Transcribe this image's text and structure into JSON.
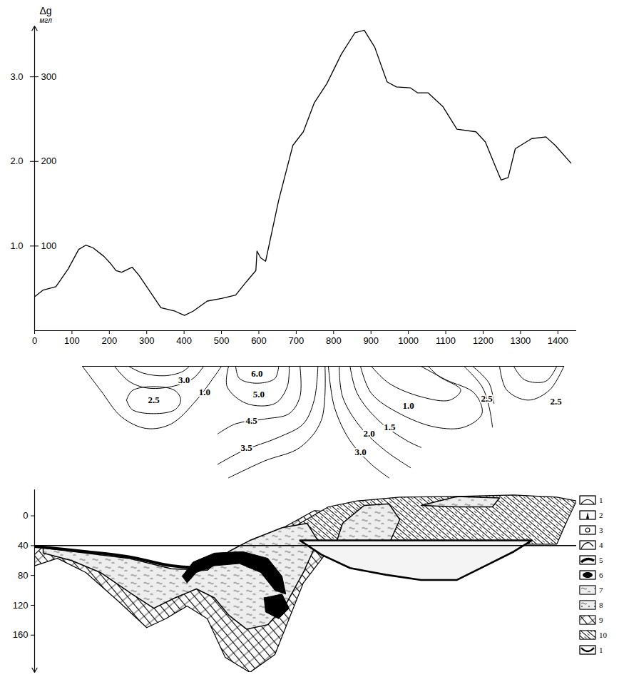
{
  "chart_data": [
    {
      "type": "line",
      "y_label": "Δg",
      "y_unit": "мгл",
      "color": "#000000",
      "grid": false,
      "x": [
        0,
        23,
        57,
        90,
        118,
        137,
        156,
        185,
        204,
        218,
        233,
        261,
        280,
        309,
        338,
        376,
        401,
        424,
        462,
        500,
        538,
        567,
        592,
        595,
        605,
        618,
        653,
        691,
        719,
        748,
        782,
        821,
        857,
        882,
        910,
        943,
        968,
        1005,
        1025,
        1053,
        1092,
        1130,
        1181,
        1206,
        1231,
        1248,
        1267,
        1286,
        1330,
        1368,
        1393,
        1435
      ],
      "values": [
        40,
        48,
        52,
        73,
        96,
        101,
        98,
        88,
        79,
        71,
        69,
        75,
        65,
        46,
        27,
        23,
        18,
        23,
        35,
        38,
        42,
        58,
        71,
        94,
        86,
        82,
        154,
        219,
        235,
        269,
        292,
        327,
        352,
        355,
        335,
        294,
        288,
        287,
        281,
        281,
        265,
        238,
        235,
        223,
        196,
        178,
        181,
        215,
        227,
        229,
        219,
        198
      ],
      "xlim": [
        0,
        1450
      ],
      "xticks": [
        0,
        100,
        200,
        300,
        400,
        500,
        600,
        700,
        800,
        900,
        1000,
        1100,
        1200,
        1300,
        1400
      ],
      "ylim": [
        0,
        360
      ],
      "yticks": [
        100,
        200,
        300
      ],
      "y2lim": [
        0,
        3.6
      ],
      "y2ticks": [
        {
          "value": 1,
          "label": "1.0"
        },
        {
          "value": 2,
          "label": "2.0"
        },
        {
          "value": 3,
          "label": "3.0"
        }
      ]
    },
    {
      "type": "contour",
      "xlim": [
        0,
        1450
      ],
      "ylim": [
        0,
        172
      ],
      "tick_labels": false,
      "contours": [
        {
          "x": [
            128,
            1416
          ],
          "depth": [
            0,
            0
          ]
        },
        {
          "x": [
            128,
            176,
            233,
            300,
            366,
            433,
            481,
            500
          ],
          "depth": [
            0,
            35,
            75,
            92,
            85,
            50,
            15,
            0
          ],
          "label": "1.0",
          "label_x": 455,
          "label_depth": 38
        },
        {
          "x": [
            246,
            261,
            319,
            376,
            391,
            376,
            319,
            261,
            246
          ],
          "depth": [
            50,
            36,
            30,
            36,
            50,
            64,
            70,
            64,
            50
          ],
          "label": "2.5",
          "label_x": 319,
          "label_depth": 50
        },
        {
          "x": [
            214,
            252,
            300,
            366,
            424,
            452
          ],
          "depth": [
            0,
            22,
            32,
            30,
            18,
            0
          ],
          "label": "3.0",
          "label_x": 400,
          "label_depth": 20
        },
        {
          "x": [
            252,
            290,
            347,
            395,
            414
          ],
          "depth": [
            0,
            10,
            14,
            8,
            0
          ]
        },
        {
          "x": [
            538,
            548,
            595,
            643,
            653
          ],
          "depth": [
            0,
            18,
            25,
            18,
            0
          ],
          "label": "6.0",
          "label_x": 595,
          "label_depth": 11
        },
        {
          "x": [
            519,
            515,
            567,
            643,
            676,
            681
          ],
          "depth": [
            0,
            30,
            55,
            55,
            30,
            0
          ],
          "label": "5.0",
          "label_x": 600,
          "label_depth": 42
        },
        {
          "x": [
            490,
            538,
            615,
            681,
            710,
            710
          ],
          "depth": [
            100,
            85,
            78,
            70,
            45,
            0
          ],
          "label": "4.5",
          "label_x": 580,
          "label_depth": 81
        },
        {
          "x": [
            490,
            557,
            653,
            719,
            748,
            758
          ],
          "depth": [
            145,
            125,
            105,
            85,
            50,
            0
          ],
          "label": "3.5",
          "label_x": 567,
          "label_depth": 121
        },
        {
          "x": [
            519,
            615,
            710,
            767,
            777
          ],
          "depth": [
            165,
            140,
            120,
            80,
            0
          ]
        },
        {
          "x": [
            786,
            802,
            844,
            901,
            948
          ],
          "depth": [
            0,
            60,
            110,
            145,
            165
          ],
          "label": "3.0",
          "label_x": 872,
          "label_depth": 127
        },
        {
          "x": [
            815,
            824,
            872,
            939,
            1006
          ],
          "depth": [
            0,
            45,
            90,
            125,
            150
          ],
          "label": "2.0",
          "label_x": 895,
          "label_depth": 100
        },
        {
          "x": [
            844,
            863,
            920,
            996,
            1034
          ],
          "depth": [
            0,
            40,
            80,
            110,
            120
          ],
          "label": "1.5",
          "label_x": 950,
          "label_depth": 90
        },
        {
          "x": [
            872,
            901,
            977,
            1073,
            1149,
            1197,
            1177,
            1101,
            1034
          ],
          "depth": [
            0,
            40,
            70,
            90,
            90,
            70,
            40,
            20,
            0
          ]
        },
        {
          "x": [
            901,
            948,
            1034,
            1111,
            1140,
            1082,
            1053
          ],
          "depth": [
            0,
            25,
            45,
            50,
            35,
            15,
            0
          ],
          "label": "1.0",
          "label_x": 1000,
          "label_depth": 58
        },
        {
          "x": [
            1149,
            1197,
            1216,
            1225
          ],
          "depth": [
            0,
            30,
            60,
            90
          ],
          "label": "2.5",
          "label_x": 1210,
          "label_depth": 48
        },
        {
          "x": [
            1172,
            1216,
            1229
          ],
          "depth": [
            0,
            25,
            55
          ]
        },
        {
          "x": [
            1244,
            1263,
            1321,
            1378,
            1416
          ],
          "depth": [
            0,
            35,
            50,
            35,
            0
          ],
          "label": "2.5",
          "label_x": 1395,
          "label_depth": 52
        },
        {
          "x": [
            1282,
            1311,
            1368,
            1397
          ],
          "depth": [
            0,
            20,
            22,
            0
          ]
        }
      ]
    },
    {
      "type": "section",
      "xlim": [
        0,
        1450
      ],
      "ylim": [
        -35,
        210
      ],
      "yticks": [
        0,
        40,
        80,
        120,
        160
      ],
      "level": 40,
      "legend": "right",
      "bodies": [
        {
          "style": "hatch",
          "x": [
            0,
            23,
            137,
            252,
            366,
            462,
            519,
            576,
            672,
            748,
            824,
            777,
            719,
            681,
            643,
            576,
            510,
            462,
            408,
            351,
            300,
            223,
            137,
            61,
            0
          ],
          "depth": [
            52,
            41,
            50,
            62,
            81,
            81,
            52,
            38,
            14,
            -7,
            -5,
            52,
            90,
            138,
            186,
            210,
            190,
            138,
            121,
            138,
            150,
            114,
            76,
            57,
            67
          ]
        },
        {
          "style": "dense_hatch",
          "x": [
            634,
            710,
            786,
            863,
            977,
            1130,
            1282,
            1397,
            1450,
            1426,
            1397,
            634
          ],
          "depth": [
            38,
            10,
            -12,
            -20,
            -25,
            -26,
            -28,
            -25,
            -20,
            5,
            38,
            38
          ]
        },
        {
          "style": "wavy",
          "x": [
            23,
            137,
            252,
            366,
            462,
            519,
            576,
            662,
            729,
            758,
            719,
            672,
            624,
            567,
            519,
            481,
            433,
            376,
            319,
            261,
            176,
            99,
            23
          ],
          "depth": [
            43,
            50,
            57,
            71,
            73,
            48,
            33,
            16,
            10,
            33,
            76,
            119,
            146,
            152,
            133,
            110,
            98,
            110,
            124,
            105,
            76,
            60,
            50
          ]
        },
        {
          "style": "wavy",
          "x": [
            806,
            824,
            882,
            948,
            977,
            948
          ],
          "depth": [
            38,
            10,
            -14,
            -16,
            5,
            38
          ]
        },
        {
          "style": "wavy",
          "x": [
            1034,
            1130,
            1244,
            1225,
            1130
          ],
          "depth": [
            -14,
            -26,
            -24,
            -12,
            -12
          ]
        },
        {
          "style": "outline",
          "x": [
            710,
            767,
            844,
            939,
            1034,
            1130,
            1206,
            1282,
            1330
          ],
          "depth": [
            33,
            52,
            70,
            79,
            86,
            86,
            67,
            48,
            33
          ]
        },
        {
          "style": "blob",
          "x": [
            395,
            424,
            481,
            557,
            624,
            662,
            672,
            643,
            605,
            548,
            481,
            433,
            408
          ],
          "depth": [
            81,
            62,
            50,
            48,
            57,
            81,
            105,
            100,
            76,
            64,
            67,
            76,
            90
          ]
        },
        {
          "style": "blob",
          "x": [
            614,
            662,
            681,
            653,
            618
          ],
          "depth": [
            110,
            105,
            124,
            138,
            129
          ]
        },
        {
          "style": "band",
          "x": [
            0,
            137,
            252,
            366,
            462
          ],
          "depth": [
            41,
            48,
            55,
            67,
            70
          ]
        }
      ],
      "legend_items": [
        {
          "label": "1",
          "style": "arc"
        },
        {
          "label": "2",
          "style": "spike"
        },
        {
          "label": "3",
          "style": "circle"
        },
        {
          "label": "4",
          "style": "hooked_arc"
        },
        {
          "label": "5",
          "style": "band"
        },
        {
          "label": "6",
          "style": "blob"
        },
        {
          "label": "7",
          "style": "wavy"
        },
        {
          "label": "8",
          "style": "dotted_wavy"
        },
        {
          "label": "9",
          "style": "hatch"
        },
        {
          "label": "10",
          "style": "dense_hatch"
        },
        {
          "label": "1",
          "style": "outline"
        }
      ]
    }
  ]
}
